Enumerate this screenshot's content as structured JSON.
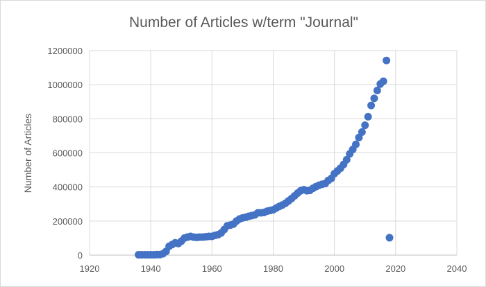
{
  "chart_data": {
    "type": "scatter",
    "title": "Number of Articles w/term \"Journal\"",
    "xlabel": "",
    "ylabel": "Number of Articles",
    "xlim": [
      1920,
      2040
    ],
    "ylim": [
      0,
      1200000
    ],
    "xticks": [
      "1920",
      "1940",
      "1960",
      "1980",
      "2000",
      "2020",
      "2040"
    ],
    "yticks": [
      "0",
      "200000",
      "400000",
      "600000",
      "800000",
      "1000000",
      "1200000"
    ],
    "grid": "vertical and horizontal",
    "legend": "none",
    "marker_color": "#4472C4",
    "points": [
      [
        1936,
        2000
      ],
      [
        1937,
        2000
      ],
      [
        1938,
        2000
      ],
      [
        1939,
        2000
      ],
      [
        1940,
        2000
      ],
      [
        1941,
        2000
      ],
      [
        1942,
        3000
      ],
      [
        1943,
        3000
      ],
      [
        1944,
        8000
      ],
      [
        1945,
        22000
      ],
      [
        1946,
        52000
      ],
      [
        1947,
        62000
      ],
      [
        1948,
        72000
      ],
      [
        1949,
        68000
      ],
      [
        1950,
        82000
      ],
      [
        1951,
        100000
      ],
      [
        1952,
        106000
      ],
      [
        1953,
        110000
      ],
      [
        1954,
        106000
      ],
      [
        1955,
        104000
      ],
      [
        1956,
        106000
      ],
      [
        1957,
        106000
      ],
      [
        1958,
        108000
      ],
      [
        1959,
        110000
      ],
      [
        1960,
        110000
      ],
      [
        1961,
        116000
      ],
      [
        1962,
        120000
      ],
      [
        1963,
        130000
      ],
      [
        1964,
        150000
      ],
      [
        1965,
        172000
      ],
      [
        1966,
        176000
      ],
      [
        1967,
        182000
      ],
      [
        1968,
        200000
      ],
      [
        1969,
        212000
      ],
      [
        1970,
        218000
      ],
      [
        1971,
        222000
      ],
      [
        1972,
        228000
      ],
      [
        1973,
        232000
      ],
      [
        1974,
        236000
      ],
      [
        1975,
        248000
      ],
      [
        1976,
        248000
      ],
      [
        1977,
        250000
      ],
      [
        1978,
        258000
      ],
      [
        1979,
        262000
      ],
      [
        1980,
        266000
      ],
      [
        1981,
        276000
      ],
      [
        1982,
        286000
      ],
      [
        1983,
        294000
      ],
      [
        1984,
        304000
      ],
      [
        1985,
        318000
      ],
      [
        1986,
        332000
      ],
      [
        1987,
        348000
      ],
      [
        1988,
        364000
      ],
      [
        1989,
        378000
      ],
      [
        1990,
        384000
      ],
      [
        1991,
        378000
      ],
      [
        1992,
        380000
      ],
      [
        1993,
        392000
      ],
      [
        1994,
        402000
      ],
      [
        1995,
        410000
      ],
      [
        1996,
        416000
      ],
      [
        1997,
        420000
      ],
      [
        1998,
        438000
      ],
      [
        1999,
        450000
      ],
      [
        2000,
        478000
      ],
      [
        2001,
        494000
      ],
      [
        2002,
        510000
      ],
      [
        2003,
        532000
      ],
      [
        2004,
        560000
      ],
      [
        2005,
        594000
      ],
      [
        2006,
        620000
      ],
      [
        2007,
        650000
      ],
      [
        2008,
        690000
      ],
      [
        2009,
        722000
      ],
      [
        2010,
        762000
      ],
      [
        2011,
        812000
      ],
      [
        2012,
        878000
      ],
      [
        2013,
        920000
      ],
      [
        2014,
        966000
      ],
      [
        2015,
        1004000
      ],
      [
        2016,
        1020000
      ],
      [
        2017,
        1142000
      ],
      [
        2018,
        102000
      ]
    ]
  }
}
